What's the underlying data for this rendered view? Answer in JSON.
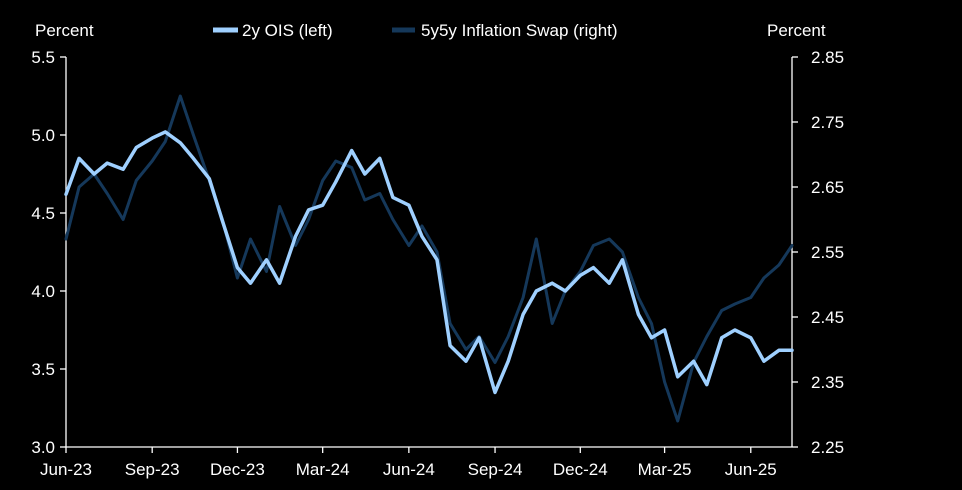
{
  "chart_data": {
    "type": "line",
    "title": "",
    "left_axis": {
      "unit_label": "Percent",
      "range": [
        3.0,
        5.5
      ],
      "ticks": [
        "3.0",
        "3.5",
        "4.0",
        "4.5",
        "5.0",
        "5.5"
      ],
      "tick_values": [
        3.0,
        3.5,
        4.0,
        4.5,
        5.0,
        5.5
      ]
    },
    "right_axis": {
      "unit_label": "Percent",
      "range": [
        2.25,
        2.85
      ],
      "ticks": [
        "2.25",
        "2.35",
        "2.45",
        "2.55",
        "2.65",
        "2.75",
        "2.85"
      ],
      "tick_values": [
        2.25,
        2.35,
        2.45,
        2.55,
        2.65,
        2.75,
        2.85
      ]
    },
    "x_axis": {
      "range": [
        "2023-06-01",
        "2025-07-15"
      ],
      "tick_labels": [
        "Jun-23",
        "Sep-23",
        "Dec-23",
        "Mar-24",
        "Jun-24",
        "Sep-24",
        "Dec-24",
        "Mar-25",
        "Jun-25"
      ],
      "tick_dates": [
        "2023-06-01",
        "2023-09-01",
        "2023-12-01",
        "2024-03-01",
        "2024-06-01",
        "2024-09-01",
        "2024-12-01",
        "2025-03-01",
        "2025-06-01"
      ]
    },
    "grid": false,
    "legend_position": "top-center",
    "series": [
      {
        "name": "2y OIS (left)",
        "axis": "left",
        "color": "#9fd0ff",
        "points": [
          [
            "2023-06-01",
            4.62
          ],
          [
            "2023-06-15",
            4.85
          ],
          [
            "2023-07-01",
            4.75
          ],
          [
            "2023-07-15",
            4.82
          ],
          [
            "2023-08-01",
            4.78
          ],
          [
            "2023-08-15",
            4.92
          ],
          [
            "2023-09-01",
            4.98
          ],
          [
            "2023-09-15",
            5.02
          ],
          [
            "2023-10-01",
            4.95
          ],
          [
            "2023-10-15",
            4.85
          ],
          [
            "2023-11-01",
            4.72
          ],
          [
            "2023-11-15",
            4.45
          ],
          [
            "2023-12-01",
            4.15
          ],
          [
            "2023-12-15",
            4.05
          ],
          [
            "2024-01-01",
            4.2
          ],
          [
            "2024-01-15",
            4.05
          ],
          [
            "2024-02-01",
            4.35
          ],
          [
            "2024-02-15",
            4.52
          ],
          [
            "2024-03-01",
            4.55
          ],
          [
            "2024-03-15",
            4.7
          ],
          [
            "2024-04-01",
            4.9
          ],
          [
            "2024-04-15",
            4.75
          ],
          [
            "2024-05-01",
            4.85
          ],
          [
            "2024-05-15",
            4.6
          ],
          [
            "2024-06-01",
            4.55
          ],
          [
            "2024-06-15",
            4.35
          ],
          [
            "2024-07-01",
            4.2
          ],
          [
            "2024-07-15",
            3.65
          ],
          [
            "2024-08-01",
            3.55
          ],
          [
            "2024-08-15",
            3.7
          ],
          [
            "2024-09-01",
            3.35
          ],
          [
            "2024-09-15",
            3.55
          ],
          [
            "2024-10-01",
            3.85
          ],
          [
            "2024-10-15",
            4.0
          ],
          [
            "2024-11-01",
            4.05
          ],
          [
            "2024-11-15",
            4.0
          ],
          [
            "2024-12-01",
            4.1
          ],
          [
            "2024-12-15",
            4.15
          ],
          [
            "2025-01-01",
            4.05
          ],
          [
            "2025-01-15",
            4.2
          ],
          [
            "2025-02-01",
            3.85
          ],
          [
            "2025-02-15",
            3.7
          ],
          [
            "2025-03-01",
            3.75
          ],
          [
            "2025-03-15",
            3.45
          ],
          [
            "2025-04-01",
            3.55
          ],
          [
            "2025-04-15",
            3.4
          ],
          [
            "2025-05-01",
            3.7
          ],
          [
            "2025-05-15",
            3.75
          ],
          [
            "2025-06-01",
            3.7
          ],
          [
            "2025-06-15",
            3.55
          ],
          [
            "2025-07-01",
            3.62
          ],
          [
            "2025-07-15",
            3.62
          ]
        ]
      },
      {
        "name": "5y5y Inflation Swap (right)",
        "axis": "right",
        "color": "#15385a",
        "points": [
          [
            "2023-06-01",
            2.57
          ],
          [
            "2023-06-15",
            2.65
          ],
          [
            "2023-07-01",
            2.67
          ],
          [
            "2023-07-15",
            2.64
          ],
          [
            "2023-08-01",
            2.6
          ],
          [
            "2023-08-15",
            2.66
          ],
          [
            "2023-09-01",
            2.69
          ],
          [
            "2023-09-15",
            2.72
          ],
          [
            "2023-10-01",
            2.79
          ],
          [
            "2023-10-15",
            2.73
          ],
          [
            "2023-11-01",
            2.66
          ],
          [
            "2023-11-15",
            2.6
          ],
          [
            "2023-12-01",
            2.51
          ],
          [
            "2023-12-15",
            2.57
          ],
          [
            "2024-01-01",
            2.52
          ],
          [
            "2024-01-15",
            2.62
          ],
          [
            "2024-02-01",
            2.56
          ],
          [
            "2024-02-15",
            2.6
          ],
          [
            "2024-03-01",
            2.66
          ],
          [
            "2024-03-15",
            2.69
          ],
          [
            "2024-04-01",
            2.68
          ],
          [
            "2024-04-15",
            2.63
          ],
          [
            "2024-05-01",
            2.64
          ],
          [
            "2024-05-15",
            2.6
          ],
          [
            "2024-06-01",
            2.56
          ],
          [
            "2024-06-15",
            2.59
          ],
          [
            "2024-07-01",
            2.55
          ],
          [
            "2024-07-15",
            2.44
          ],
          [
            "2024-08-01",
            2.4
          ],
          [
            "2024-08-15",
            2.42
          ],
          [
            "2024-09-01",
            2.38
          ],
          [
            "2024-09-15",
            2.42
          ],
          [
            "2024-10-01",
            2.48
          ],
          [
            "2024-10-15",
            2.57
          ],
          [
            "2024-11-01",
            2.44
          ],
          [
            "2024-11-15",
            2.49
          ],
          [
            "2024-12-01",
            2.52
          ],
          [
            "2024-12-15",
            2.56
          ],
          [
            "2025-01-01",
            2.57
          ],
          [
            "2025-01-15",
            2.55
          ],
          [
            "2025-02-01",
            2.48
          ],
          [
            "2025-02-15",
            2.44
          ],
          [
            "2025-03-01",
            2.35
          ],
          [
            "2025-03-15",
            2.29
          ],
          [
            "2025-04-01",
            2.38
          ],
          [
            "2025-04-15",
            2.42
          ],
          [
            "2025-05-01",
            2.46
          ],
          [
            "2025-05-15",
            2.47
          ],
          [
            "2025-06-01",
            2.48
          ],
          [
            "2025-06-15",
            2.51
          ],
          [
            "2025-07-01",
            2.53
          ],
          [
            "2025-07-15",
            2.56
          ]
        ]
      }
    ]
  }
}
